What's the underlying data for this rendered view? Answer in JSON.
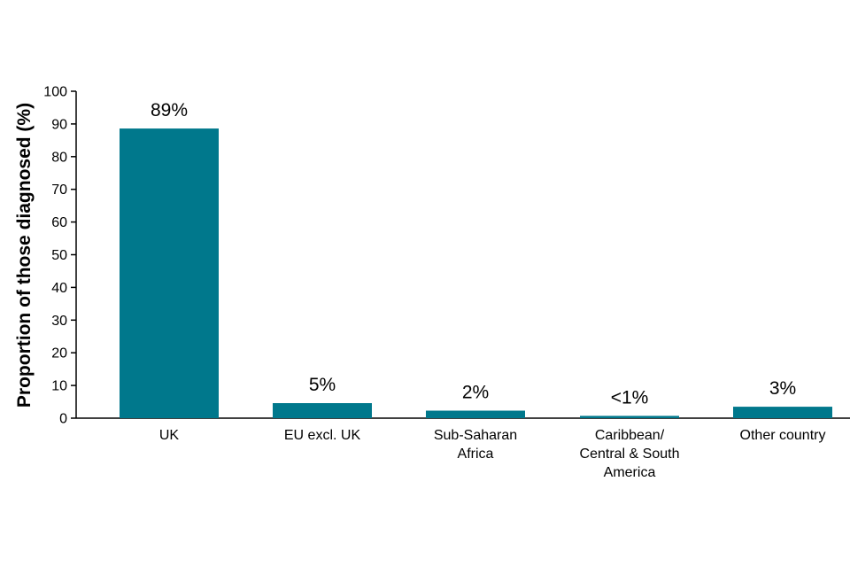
{
  "chart_data": {
    "type": "bar",
    "title": "",
    "xlabel": "",
    "ylabel": "Proportion of those diagnosed (%)",
    "ylim": [
      0,
      100
    ],
    "yticks": [
      0,
      10,
      20,
      30,
      40,
      50,
      60,
      70,
      80,
      90,
      100
    ],
    "grid": false,
    "legend": "none",
    "categories": [
      [
        "UK"
      ],
      [
        "EU excl. UK"
      ],
      [
        "Sub-Saharan",
        "Africa"
      ],
      [
        "Caribbean/",
        "Central & South",
        "America"
      ],
      [
        "Other country"
      ]
    ],
    "values": [
      88.6,
      4.6,
      2.3,
      0.7,
      3.5
    ],
    "data_labels": [
      "89%",
      "5%",
      "2%",
      "<1%",
      "3%"
    ],
    "bar_color": "#00788c"
  }
}
